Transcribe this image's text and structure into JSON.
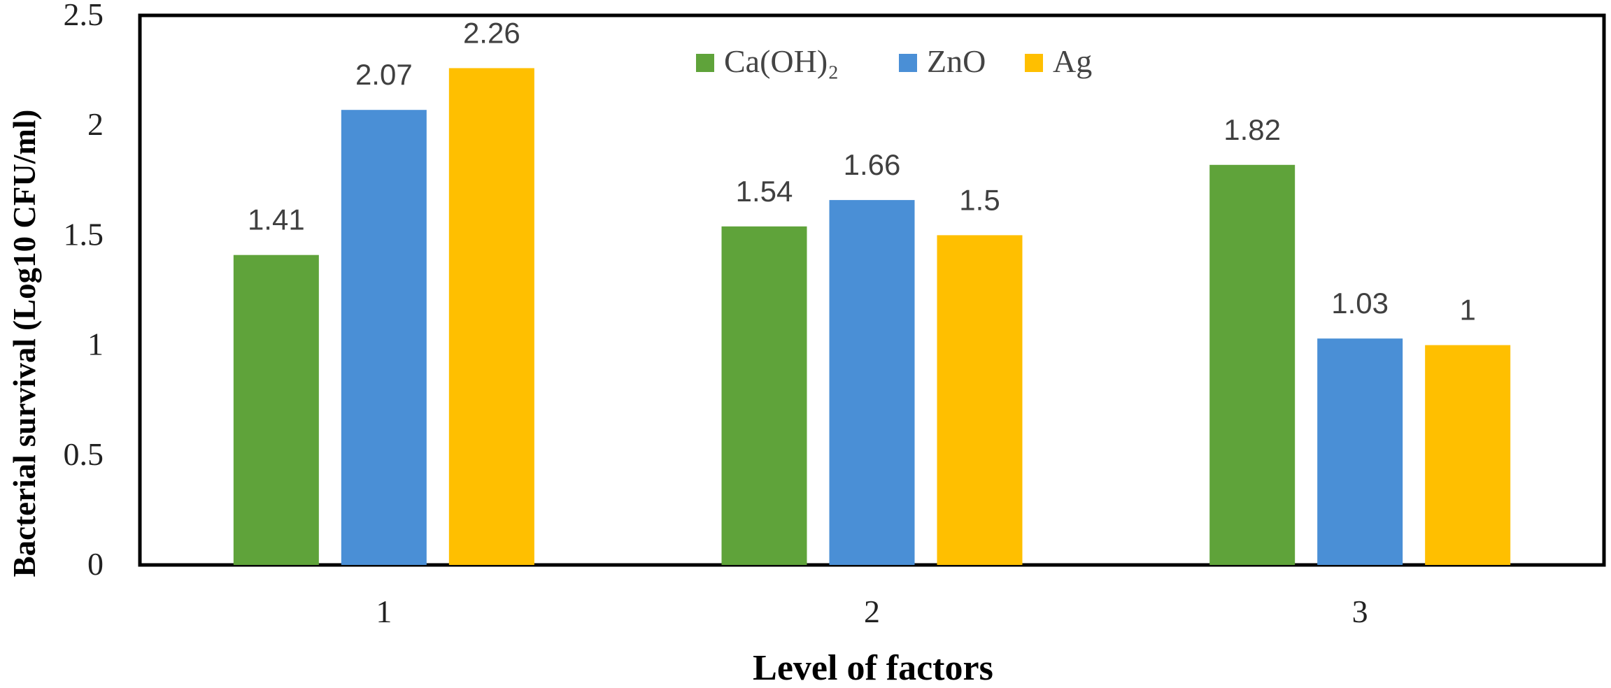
{
  "chart_data": {
    "type": "bar",
    "title": "",
    "xlabel": "Level of factors",
    "ylabel": "Bacterial survival (Log10 CFU/ml)",
    "categories": [
      "1",
      "2",
      "3"
    ],
    "ylim": [
      0,
      2.5
    ],
    "yticks": [
      "0",
      "0.5",
      "1",
      "1.5",
      "2",
      "2.5"
    ],
    "grid": false,
    "legend_position": "top-center",
    "series": [
      {
        "name": "Ca(OH)₂",
        "color": "#5fa33a",
        "values": [
          1.41,
          1.54,
          1.82
        ],
        "labels": [
          "1.41",
          "1.54",
          "1.82"
        ]
      },
      {
        "name": "ZnO",
        "color": "#4a8fd6",
        "values": [
          2.07,
          1.66,
          1.03
        ],
        "labels": [
          "2.07",
          "1.66",
          "1.03"
        ]
      },
      {
        "name": "Ag",
        "color": "#ffbf00",
        "values": [
          2.26,
          1.5,
          1.0
        ],
        "labels": [
          "2.26",
          "1.5",
          "1"
        ]
      }
    ]
  }
}
